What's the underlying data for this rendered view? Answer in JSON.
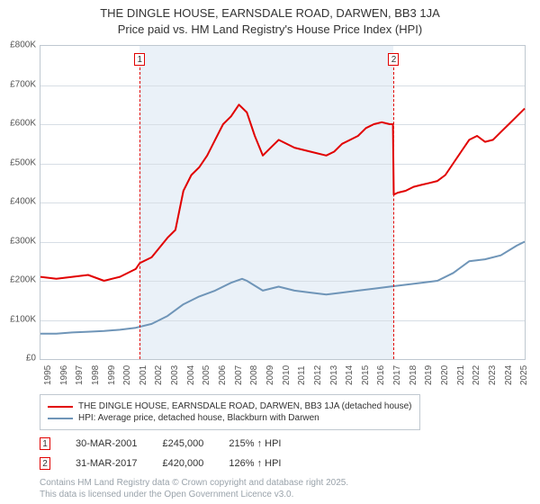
{
  "title_line1": "THE DINGLE HOUSE, EARNSDALE ROAD, DARWEN, BB3 1JA",
  "title_line2": "Price paid vs. HM Land Registry's House Price Index (HPI)",
  "chart": {
    "type": "line",
    "background_color": "#ffffff",
    "plot_border_color": "#bfc8d0",
    "grid_color": "#d7dee5",
    "shade_color": "#e8f0f7",
    "xlim": [
      1995,
      2025.5
    ],
    "ylim": [
      0,
      800000
    ],
    "ytick_step": 100000,
    "y_ticks": [
      "£0",
      "£100K",
      "£200K",
      "£300K",
      "£400K",
      "£500K",
      "£600K",
      "£700K",
      "£800K"
    ],
    "x_ticks": [
      1995,
      1996,
      1997,
      1998,
      1999,
      2000,
      2001,
      2002,
      2003,
      2004,
      2005,
      2006,
      2007,
      2008,
      2009,
      2010,
      2011,
      2012,
      2013,
      2014,
      2015,
      2016,
      2017,
      2018,
      2019,
      2020,
      2021,
      2022,
      2023,
      2024,
      2025
    ],
    "label_fontsize": 10,
    "axis_text_color": "#555555",
    "shade_range": [
      2001.25,
      2017.25
    ],
    "markers": [
      {
        "id": "1",
        "x": 2001.25,
        "label": "1"
      },
      {
        "id": "2",
        "x": 2017.25,
        "label": "2"
      }
    ],
    "series": [
      {
        "name": "price_paid",
        "color": "#e10000",
        "width": 2,
        "points": [
          [
            1995,
            210000
          ],
          [
            1996,
            205000
          ],
          [
            1997,
            210000
          ],
          [
            1998,
            215000
          ],
          [
            1999,
            200000
          ],
          [
            2000,
            210000
          ],
          [
            2001,
            230000
          ],
          [
            2001.25,
            245000
          ],
          [
            2002,
            260000
          ],
          [
            2003,
            310000
          ],
          [
            2003.5,
            330000
          ],
          [
            2004,
            430000
          ],
          [
            2004.5,
            470000
          ],
          [
            2005,
            490000
          ],
          [
            2005.5,
            520000
          ],
          [
            2006,
            560000
          ],
          [
            2006.5,
            600000
          ],
          [
            2007,
            620000
          ],
          [
            2007.5,
            650000
          ],
          [
            2008,
            630000
          ],
          [
            2008.5,
            570000
          ],
          [
            2009,
            520000
          ],
          [
            2009.5,
            540000
          ],
          [
            2010,
            560000
          ],
          [
            2011,
            540000
          ],
          [
            2012,
            530000
          ],
          [
            2013,
            520000
          ],
          [
            2013.5,
            530000
          ],
          [
            2014,
            550000
          ],
          [
            2015,
            570000
          ],
          [
            2015.5,
            590000
          ],
          [
            2016,
            600000
          ],
          [
            2016.5,
            605000
          ],
          [
            2017,
            600000
          ],
          [
            2017.2,
            600000
          ],
          [
            2017.25,
            420000
          ],
          [
            2017.5,
            425000
          ],
          [
            2018,
            430000
          ],
          [
            2018.5,
            440000
          ],
          [
            2019,
            445000
          ],
          [
            2019.5,
            450000
          ],
          [
            2020,
            455000
          ],
          [
            2020.5,
            470000
          ],
          [
            2021,
            500000
          ],
          [
            2021.5,
            530000
          ],
          [
            2022,
            560000
          ],
          [
            2022.5,
            570000
          ],
          [
            2023,
            555000
          ],
          [
            2023.5,
            560000
          ],
          [
            2024,
            580000
          ],
          [
            2024.5,
            600000
          ],
          [
            2025,
            620000
          ],
          [
            2025.5,
            640000
          ]
        ]
      },
      {
        "name": "hpi",
        "color": "#6f95b8",
        "width": 2,
        "points": [
          [
            1995,
            65000
          ],
          [
            1996,
            65000
          ],
          [
            1997,
            68000
          ],
          [
            1998,
            70000
          ],
          [
            1999,
            72000
          ],
          [
            2000,
            75000
          ],
          [
            2001,
            80000
          ],
          [
            2002,
            90000
          ],
          [
            2003,
            110000
          ],
          [
            2004,
            140000
          ],
          [
            2005,
            160000
          ],
          [
            2006,
            175000
          ],
          [
            2007,
            195000
          ],
          [
            2007.7,
            205000
          ],
          [
            2008,
            200000
          ],
          [
            2009,
            175000
          ],
          [
            2010,
            185000
          ],
          [
            2011,
            175000
          ],
          [
            2012,
            170000
          ],
          [
            2013,
            165000
          ],
          [
            2014,
            170000
          ],
          [
            2015,
            175000
          ],
          [
            2016,
            180000
          ],
          [
            2017,
            185000
          ],
          [
            2018,
            190000
          ],
          [
            2019,
            195000
          ],
          [
            2020,
            200000
          ],
          [
            2021,
            220000
          ],
          [
            2022,
            250000
          ],
          [
            2023,
            255000
          ],
          [
            2024,
            265000
          ],
          [
            2025,
            290000
          ],
          [
            2025.5,
            300000
          ]
        ]
      }
    ]
  },
  "legend": {
    "items": [
      {
        "color": "#e10000",
        "label": "THE DINGLE HOUSE, EARNSDALE ROAD, DARWEN, BB3 1JA (detached house)"
      },
      {
        "color": "#6f95b8",
        "label": "HPI: Average price, detached house, Blackburn with Darwen"
      }
    ]
  },
  "sales": [
    {
      "marker": "1",
      "date": "30-MAR-2001",
      "price": "£245,000",
      "hpi_pct": "215% ↑ HPI"
    },
    {
      "marker": "2",
      "date": "31-MAR-2017",
      "price": "£420,000",
      "hpi_pct": "126% ↑ HPI"
    }
  ],
  "footer_line1": "Contains HM Land Registry data © Crown copyright and database right 2025.",
  "footer_line2": "This data is licensed under the Open Government Licence v3.0."
}
